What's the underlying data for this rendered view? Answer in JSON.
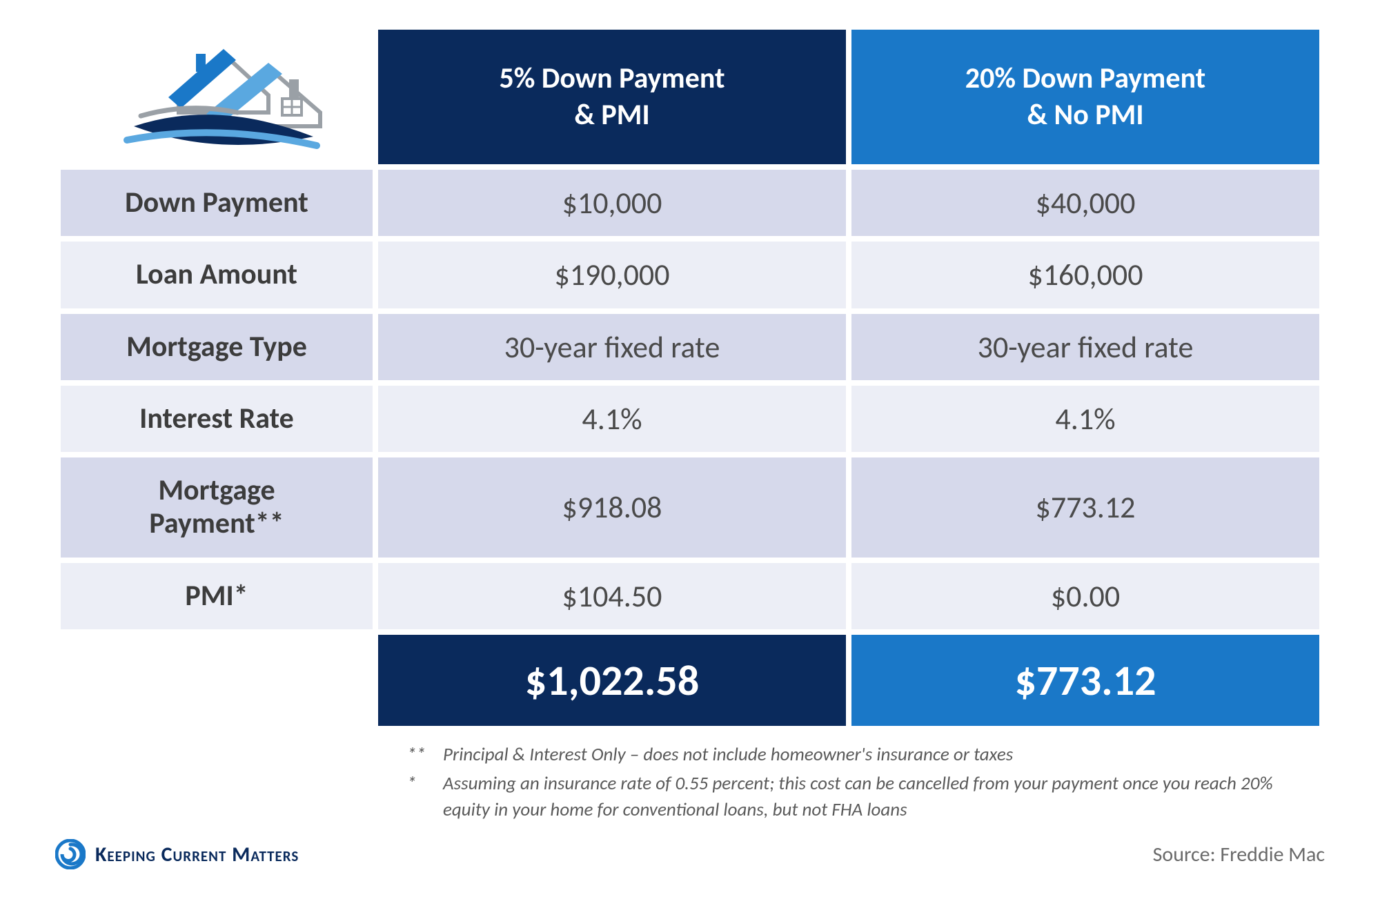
{
  "table": {
    "type": "table",
    "colors": {
      "header_col_a_bg": "#0a2a5c",
      "header_col_b_bg": "#1a78c8",
      "header_fg": "#ffffff",
      "row_bg_a": "#d6d9eb",
      "row_bg_b": "#eceef6",
      "label_fg": "#3c3c3c",
      "value_fg": "#4a4a4a",
      "total_fg": "#ffffff"
    },
    "fonts": {
      "header_size_pt": 32,
      "label_size_pt": 32,
      "value_size_pt": 33,
      "total_size_pt": 46,
      "header_weight": 700,
      "label_weight": 700,
      "value_weight": 400,
      "total_weight": 700
    },
    "column_widths_pct": [
      25,
      37.5,
      37.5
    ],
    "headers": {
      "col_a": "5% Down Payment\n& PMI",
      "col_b": "20% Down Payment\n& No PMI"
    },
    "rows": [
      {
        "label": "Down Payment",
        "a": "$10,000",
        "b": "$40,000"
      },
      {
        "label": "Loan Amount",
        "a": "$190,000",
        "b": "$160,000"
      },
      {
        "label": "Mortgage Type",
        "a": "30-year fixed rate",
        "b": "30-year fixed rate"
      },
      {
        "label": "Interest Rate",
        "a": "4.1%",
        "b": "4.1%"
      },
      {
        "label": "Mortgage\nPayment**",
        "a": "$918.08",
        "b": "$773.12"
      },
      {
        "label": "PMI*",
        "a": "$104.50",
        "b": "$0.00"
      }
    ],
    "totals": {
      "a": "$1,022.58",
      "b": "$773.12"
    }
  },
  "footnotes": {
    "fn1_marker": "**",
    "fn1_text": "Principal & Interest Only – does not include homeowner's insurance or taxes",
    "fn2_marker": "*",
    "fn2_text": "Assuming an insurance rate of 0.55 percent; this cost can be cancelled from your payment once you reach 20% equity in your home for conventional loans, but not FHA loans"
  },
  "brand": {
    "name": "Keeping Current Matters",
    "spiral_color": "#1a78c8"
  },
  "source": {
    "label": "Source: Freddie Mac"
  },
  "logo": {
    "roof_dark": "#1a78c8",
    "roof_light": "#5aa8e0",
    "outline": "#9aa0a6",
    "swoosh_dark": "#0a2a5c",
    "swoosh_light": "#5aa8e0"
  }
}
